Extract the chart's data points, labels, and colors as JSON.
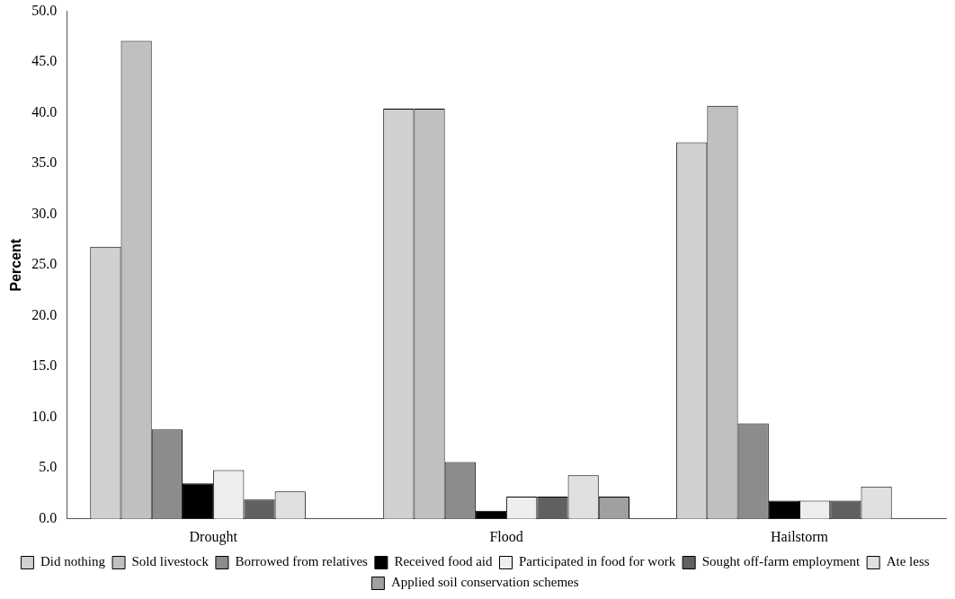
{
  "chart_data": {
    "type": "bar",
    "ylabel": "Percent",
    "categories": [
      "Drought",
      "Flood",
      "Hailstorm"
    ],
    "series": [
      {
        "name": "Did nothing",
        "color": "#d0d0d0",
        "values": [
          26.8,
          40.4,
          37.1
        ]
      },
      {
        "name": "Sold livestock",
        "color": "#c0c0c0",
        "values": [
          47.1,
          40.4,
          40.7
        ]
      },
      {
        "name": "Borrowed from relatives",
        "color": "#8c8c8c",
        "values": [
          8.8,
          5.6,
          9.4
        ]
      },
      {
        "name": "Received food aid",
        "color": "#000000",
        "values": [
          3.5,
          0.8,
          1.8
        ]
      },
      {
        "name": "Participated in food for work",
        "color": "#eeeeee",
        "values": [
          4.8,
          2.2,
          1.8
        ]
      },
      {
        "name": "Sought off-farm employment",
        "color": "#606060",
        "values": [
          1.9,
          2.2,
          1.8
        ]
      },
      {
        "name": "Ate less",
        "color": "#e0e0e0",
        "values": [
          2.7,
          4.3,
          3.2
        ]
      },
      {
        "name": "Applied soil conservation schemes",
        "color": "#a0a0a0",
        "values": [
          null,
          2.2,
          null
        ]
      }
    ],
    "ylim": [
      0,
      50
    ],
    "yticks": [
      {
        "value": 0,
        "label": "0.0"
      },
      {
        "value": 5,
        "label": "5.0"
      },
      {
        "value": 10,
        "label": "10.0"
      },
      {
        "value": 15,
        "label": "15.0"
      },
      {
        "value": 20,
        "label": "20.0"
      },
      {
        "value": 25,
        "label": "25.0"
      },
      {
        "value": 30,
        "label": "30.0"
      },
      {
        "value": 35,
        "label": "35.0"
      },
      {
        "value": 40,
        "label": "40.0"
      },
      {
        "value": 45,
        "label": "45.0"
      },
      {
        "value": 50,
        "label": "50.0"
      }
    ],
    "grid": false,
    "legend": "bottom"
  }
}
